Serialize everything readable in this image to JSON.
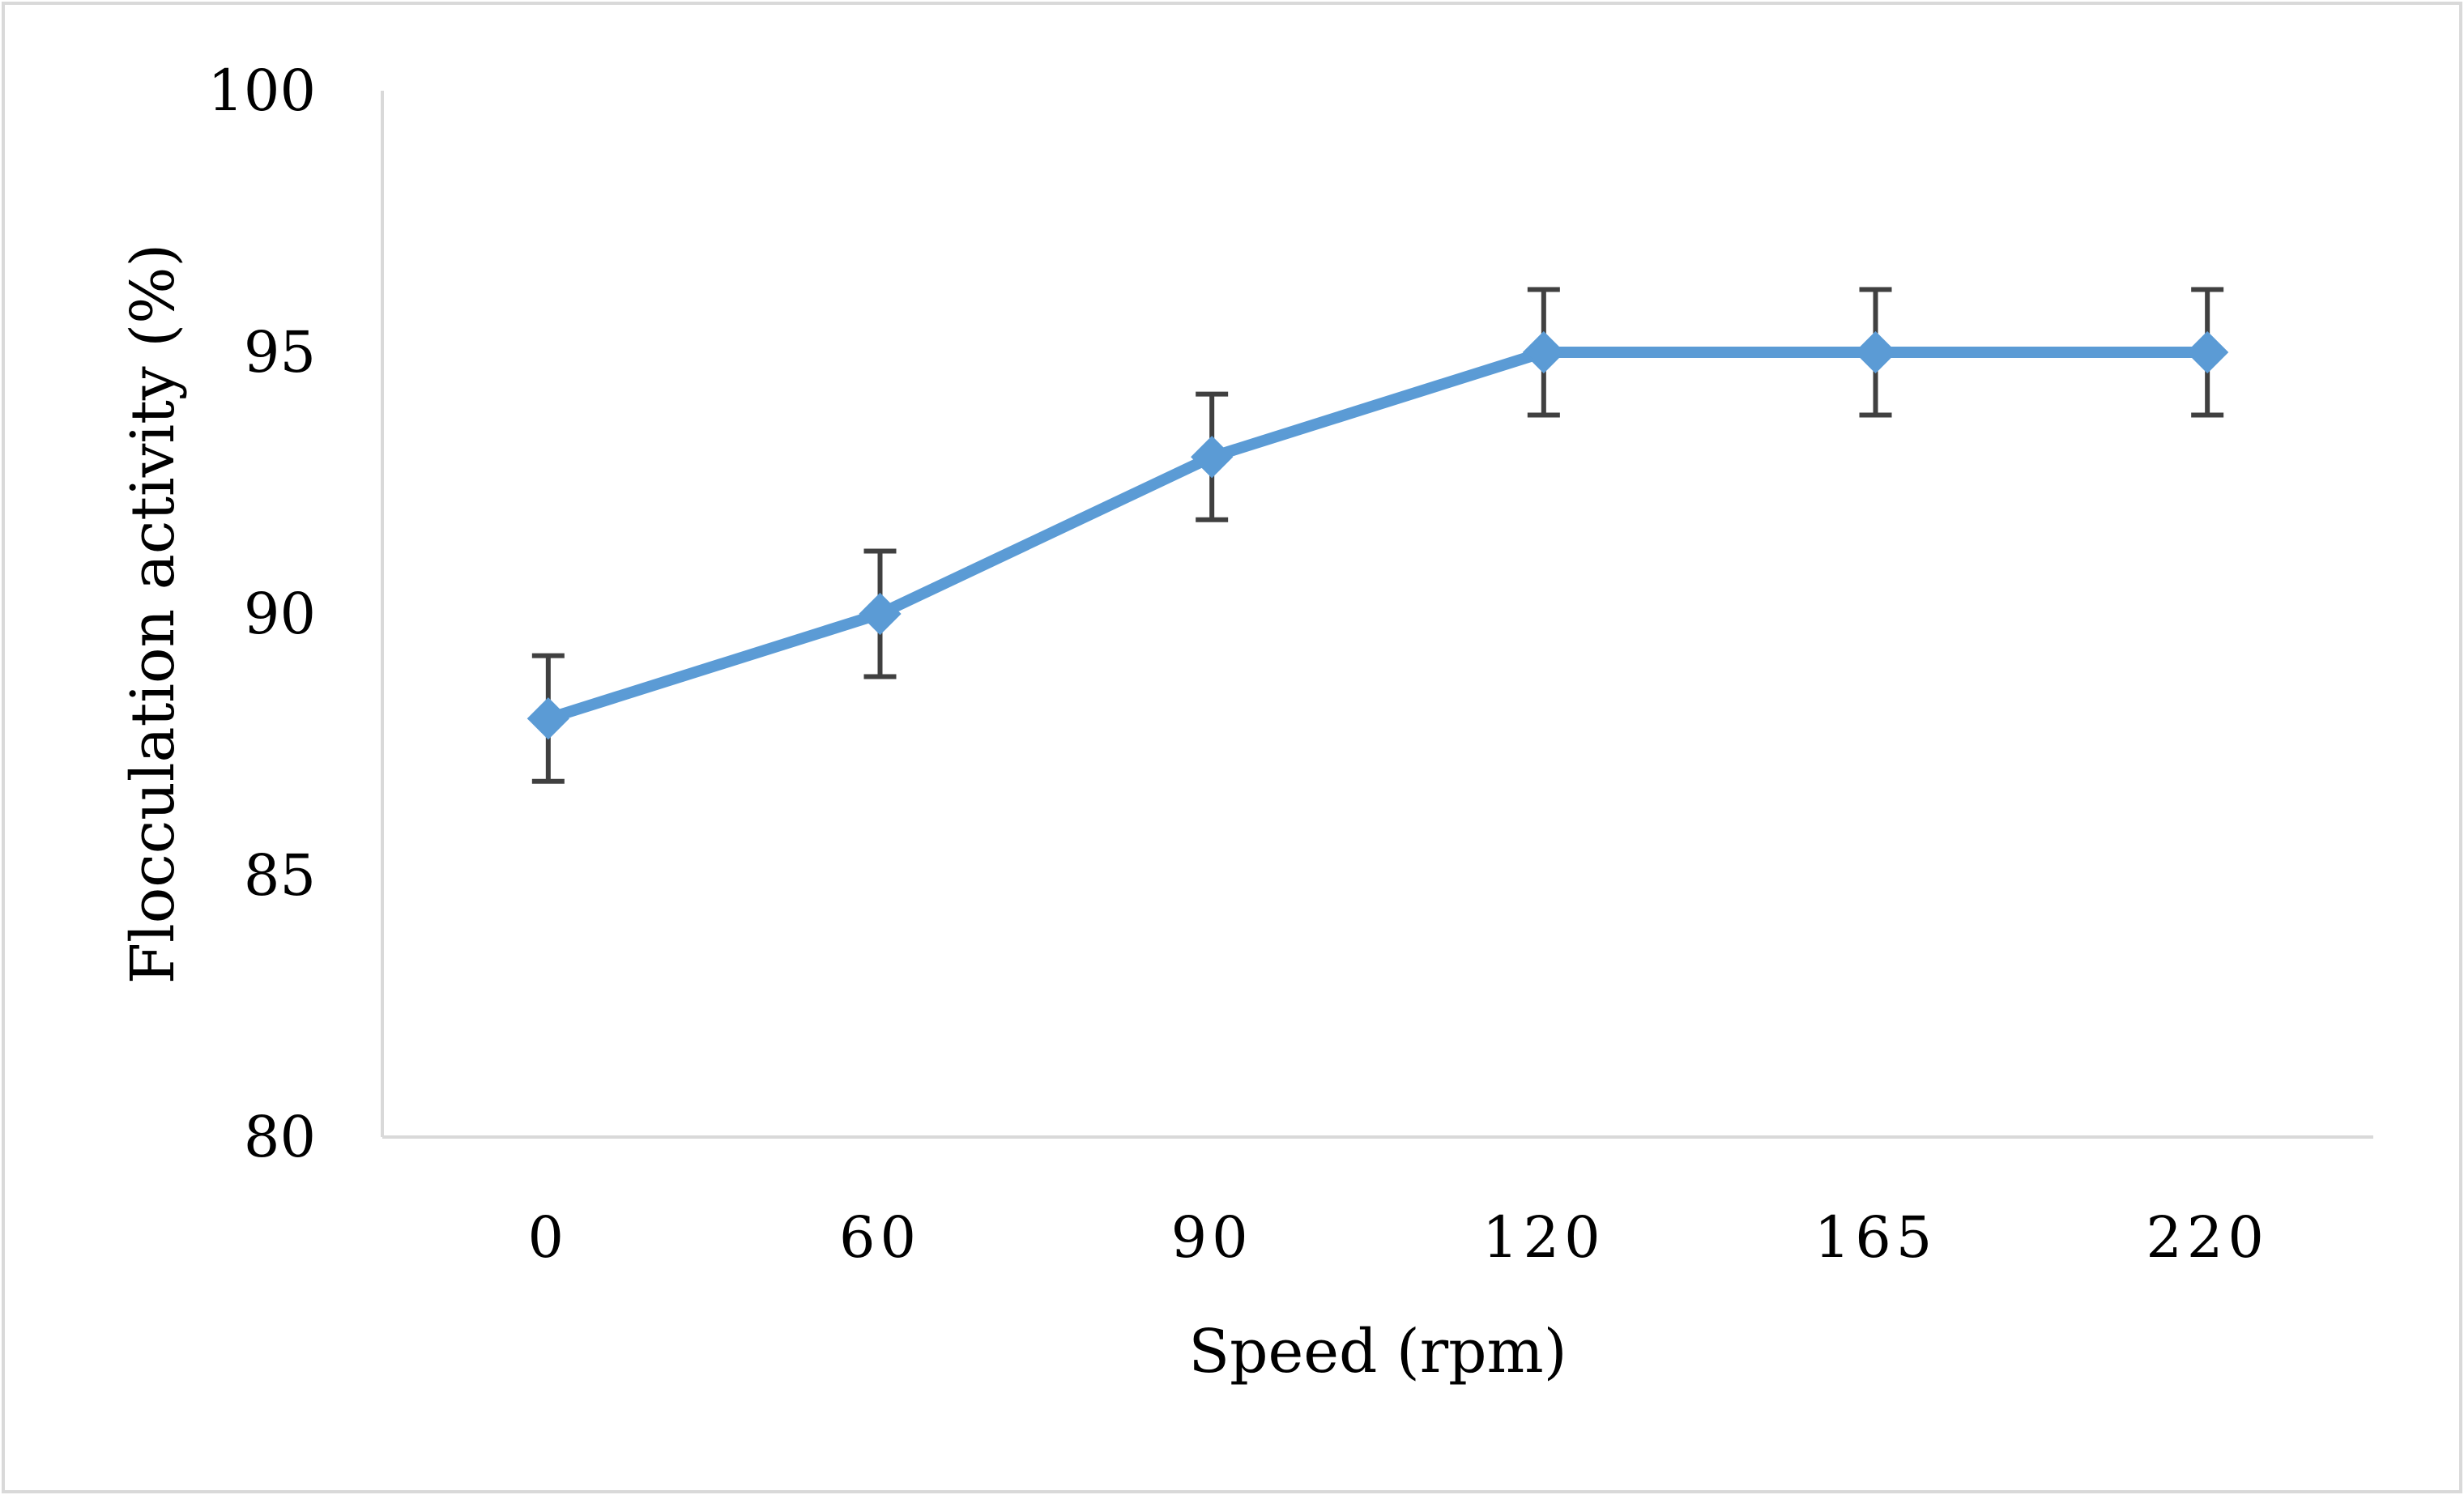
{
  "chart_data": {
    "type": "line",
    "title": "",
    "xlabel": "Speed (rpm)",
    "ylabel": "Flocculation activity (%)",
    "categories": [
      "0",
      "60",
      "90",
      "120",
      "165",
      "220"
    ],
    "ylim": [
      80,
      100
    ],
    "yticks": [
      "80",
      "85",
      "90",
      "95",
      "100"
    ],
    "grid": false,
    "legend": "none",
    "series": [
      {
        "name": "Flocculation activity",
        "values": [
          88,
          90,
          93,
          95,
          95,
          95
        ],
        "error": [
          1.2,
          1.2,
          1.2,
          1.2,
          1.2,
          1.2
        ],
        "color": "#5B9BD5",
        "marker": "diamond"
      }
    ],
    "error_bar_color": "#404040",
    "axis_color": "#d9d9d9"
  }
}
